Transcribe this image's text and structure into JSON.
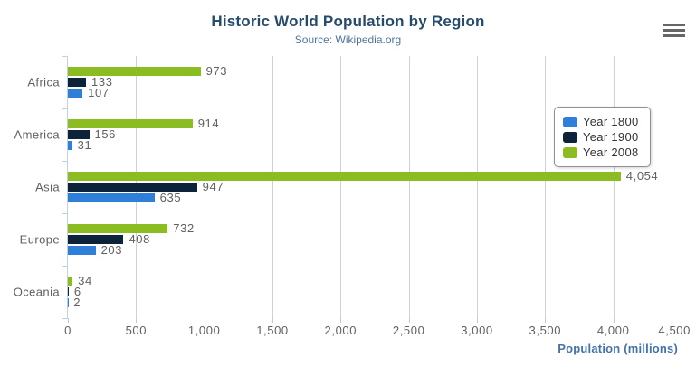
{
  "chart_data": {
    "type": "bar",
    "title": "Historic World Population by Region",
    "subtitle": "Source: Wikipedia.org",
    "categories": [
      "Africa",
      "America",
      "Asia",
      "Europe",
      "Oceania"
    ],
    "series": [
      {
        "name": "Year 1800",
        "color": "#2f7ed8",
        "values": [
          107,
          31,
          635,
          203,
          2
        ]
      },
      {
        "name": "Year 1900",
        "color": "#0d233a",
        "values": [
          133,
          156,
          947,
          408,
          6
        ]
      },
      {
        "name": "Year 2008",
        "color": "#8bbc21",
        "values": [
          973,
          914,
          4054,
          732,
          34
        ]
      }
    ],
    "data_labels": [
      [
        "107",
        "31",
        "635",
        "203",
        "2"
      ],
      [
        "133",
        "156",
        "947",
        "408",
        "6"
      ],
      [
        "973",
        "914",
        "4,054",
        "732",
        "34"
      ]
    ],
    "xlabel": "Population (millions)",
    "axis": {
      "min": 0,
      "max": 4500,
      "tick_step": 500,
      "tick_labels": [
        "0",
        "500",
        "1,000",
        "1,500",
        "2,000",
        "2,500",
        "3,000",
        "3,500",
        "4,000",
        "4,500"
      ]
    },
    "legend_position": "right-floating",
    "grid": true,
    "colors": {
      "title": "#274b6d",
      "subtitle": "#4d759e",
      "axis_title": "#4572a7",
      "labels": "#606060",
      "gridline": "#d2d2d2",
      "category_axis_line": "#c0d0e0",
      "legend_border": "#909090"
    }
  },
  "menu": {
    "name": "chart context menu"
  }
}
